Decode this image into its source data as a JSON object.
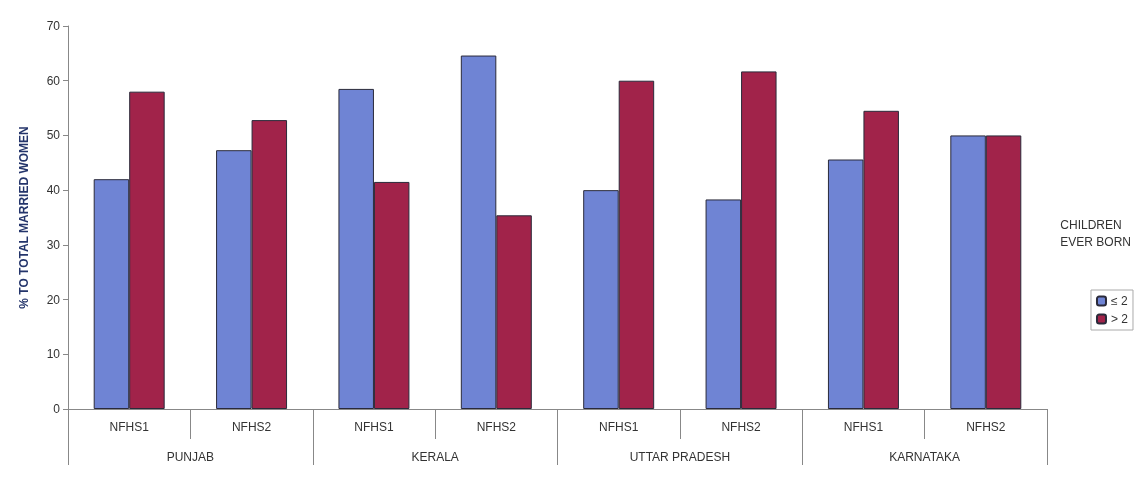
{
  "chart_data": {
    "type": "bar",
    "ylabel": "% TO TOTAL MARRIED WOMEN",
    "legend_title": "CHILDREN\nEVER BORN",
    "legend": "right",
    "categories": [
      "NFHS1",
      "NFHS2",
      "NFHS1",
      "NFHS2",
      "NFHS1",
      "NFHS2",
      "NFHS1",
      "NFHS2"
    ],
    "annotations": [
      "PUNJAB",
      "KERALA",
      "UTTAR PRADESH",
      "KARNATAKA"
    ],
    "series": [
      {
        "name": "≤ 2",
        "color": "#6f84d4",
        "values": [
          42,
          47.3,
          58.5,
          64.6,
          40,
          38.3,
          45.6,
          50
        ]
      },
      {
        "name": "> 2",
        "color": "#a1234a",
        "values": [
          58,
          52.8,
          41.5,
          35.4,
          60,
          61.7,
          54.5,
          50
        ]
      }
    ],
    "ylim": [
      0,
      70
    ],
    "yticks": [
      0,
      10,
      20,
      30,
      40,
      50,
      60,
      70
    ],
    "grid": false
  }
}
